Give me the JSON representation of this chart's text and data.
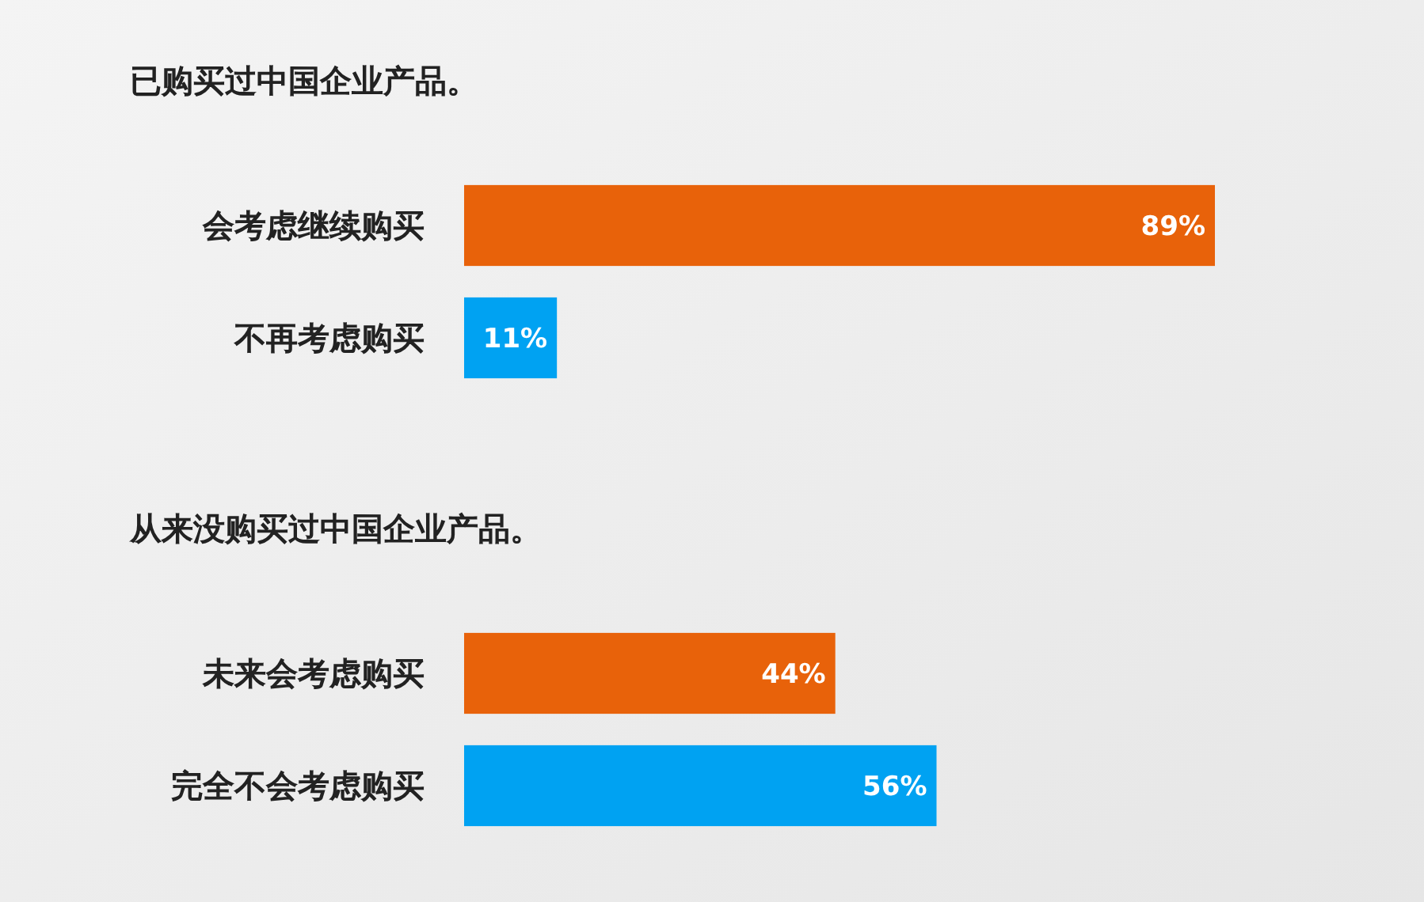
{
  "chart_data": [
    {
      "type": "bar",
      "orientation": "horizontal",
      "title": "已购买过中国企业产品。",
      "categories": [
        "会考虑继续购买",
        "不再考虑购买"
      ],
      "values": [
        89,
        11
      ],
      "colors": [
        "#e8620a",
        "#00a2f2"
      ],
      "value_labels": [
        "89%",
        "11%"
      ]
    },
    {
      "type": "bar",
      "orientation": "horizontal",
      "title": "从来没购买过中国企业产品。",
      "categories": [
        "未来会考虑购买",
        "完全不会考虑购买"
      ],
      "values": [
        44,
        56
      ],
      "colors": [
        "#e8620a",
        "#00a2f2"
      ],
      "value_labels": [
        "44%",
        "56%"
      ]
    }
  ]
}
